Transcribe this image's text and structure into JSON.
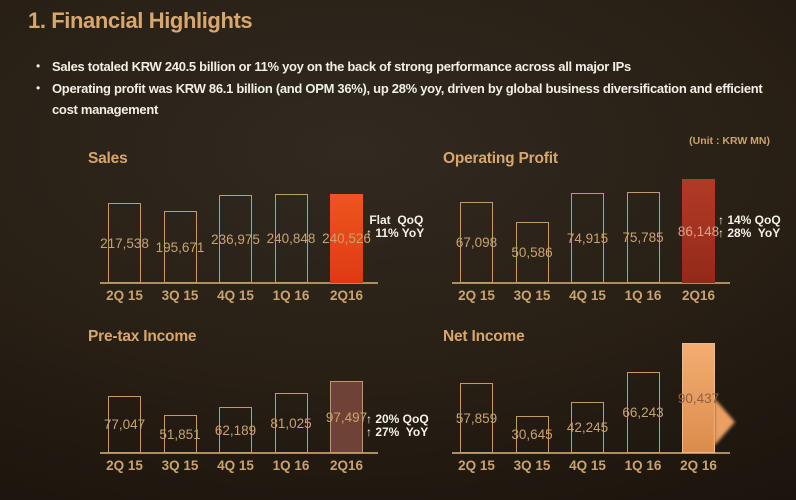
{
  "slide": {
    "title": "1. Financial Highlights",
    "unit_label": "(Unit : KRW MN)",
    "bullet_glyph": "•",
    "bullets": [
      "Sales totaled KRW 240.5 billion or 11% yoy on the back of strong performance across all major IPs",
      "Operating profit was KRW 86.1 billion (and OPM 36%), up 28% yoy, driven by global business diversification and efficient cost management"
    ]
  },
  "colors": {
    "title_gold": "#d7a76d",
    "text_light": "#f0eee7",
    "label_tan": "#c9a26d",
    "bar_outline": "#c39a6a",
    "axis": "#ad8d5e",
    "anno_white": "#f3f1ea"
  },
  "chart_data": [
    {
      "id": "sales",
      "type": "bar",
      "title": "Sales",
      "categories": [
        "2Q 15",
        "3Q 15",
        "4Q 15",
        "1Q 16",
        "2Q16"
      ],
      "values": [
        217538,
        195671,
        236975,
        240848,
        240526
      ],
      "ylim": [
        0,
        240848
      ],
      "grid": false,
      "legend": "none",
      "highlight_index": 4,
      "highlight_color": "#e8481c",
      "highlight_gradient": [
        "#ef5520",
        "#de3a12"
      ],
      "annotation": [
        " Flat  QoQ",
        "↑ 11% YoY"
      ]
    },
    {
      "id": "operating-profit",
      "type": "bar",
      "title": "Operating Profit",
      "categories": [
        "2Q 15",
        "3Q 15",
        "4Q 15",
        "1Q 16",
        "2Q16"
      ],
      "values": [
        67098,
        50586,
        74915,
        75785,
        86148
      ],
      "ylim": [
        0,
        86148
      ],
      "grid": false,
      "legend": "none",
      "highlight_index": 4,
      "highlight_color": "#a33321",
      "highlight_gradient": [
        "#b13b25",
        "#93291a"
      ],
      "highlight_value_color": "#dfa089",
      "annotation": [
        "↑ 14% QoQ",
        "↑ 28%  YoY"
      ]
    },
    {
      "id": "pretax-income",
      "type": "bar",
      "title": "Pre-tax Income",
      "categories": [
        "2Q 15",
        "3Q 15",
        "4Q 15",
        "1Q 16",
        "2Q16"
      ],
      "values": [
        77047,
        51851,
        62189,
        81025,
        97497
      ],
      "ylim": [
        0,
        97497
      ],
      "grid": false,
      "legend": "none",
      "highlight_index": 4,
      "highlight_color": "#6e4336",
      "highlight_border": "#c0976a",
      "annotation": [
        "↑ 20% QoQ",
        "↑ 27%  YoY"
      ]
    },
    {
      "id": "net-income",
      "type": "bar",
      "title": "Net Income",
      "categories": [
        "2Q 15",
        "3Q 15",
        "4Q 15",
        "1Q 16",
        "2Q 16"
      ],
      "values": [
        57859,
        30645,
        42245,
        66243,
        90437
      ],
      "ylim": [
        0,
        90437
      ],
      "grid": false,
      "legend": "none",
      "highlight_index": 4,
      "highlight_color": "#eda266",
      "highlight_gradient": [
        "#f3ad72",
        "#db8c4c"
      ],
      "highlight_border": "#f2b988",
      "highlight_value_color": "#8d6142",
      "arrow": true,
      "arrow_color": "#eb9f63",
      "annotation": null
    }
  ]
}
